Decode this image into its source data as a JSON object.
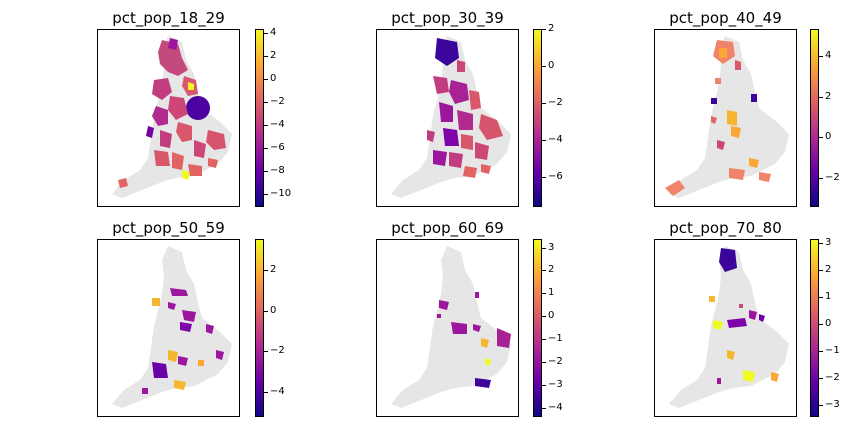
{
  "colormap": [
    "#0d0887",
    "#6a00a8",
    "#b12a90",
    "#e16462",
    "#fca636",
    "#f0f921"
  ],
  "base_color": "#e6e6e6",
  "panels": [
    {
      "title": "pct_pop_18_29",
      "ticks": [
        "4",
        "2",
        "0",
        "−2",
        "−4",
        "−6",
        "−8",
        "−10"
      ],
      "tick_values": [
        4,
        2,
        0,
        -2,
        -4,
        -6,
        -8,
        -10
      ],
      "vmin": -11,
      "vmax": 4.4
    },
    {
      "title": "pct_pop_30_39",
      "ticks": [
        "2",
        "0",
        "−2",
        "−4",
        "−6"
      ],
      "tick_values": [
        2,
        0,
        -2,
        -4,
        -6
      ],
      "vmin": -7.5,
      "vmax": 2
    },
    {
      "title": "pct_pop_40_49",
      "ticks": [
        "4",
        "2",
        "0",
        "−2"
      ],
      "tick_values": [
        4,
        2,
        0,
        -2
      ],
      "vmin": -3.3,
      "vmax": 5.5
    },
    {
      "title": "pct_pop_50_59",
      "ticks": [
        "2",
        "0",
        "−2",
        "−4"
      ],
      "tick_values": [
        2,
        0,
        -2,
        -4
      ],
      "vmin": -5.3,
      "vmax": 3.6
    },
    {
      "title": "pct_pop_60_69",
      "ticks": [
        "3",
        "2",
        "1",
        "0",
        "−1",
        "−2",
        "−3",
        "−4"
      ],
      "tick_values": [
        3,
        2,
        1,
        0,
        -1,
        -2,
        -3,
        -4
      ],
      "vmin": -4.5,
      "vmax": 3.3
    },
    {
      "title": "pct_pop_70_80",
      "ticks": [
        "3",
        "2",
        "1",
        "0",
        "−1",
        "−2",
        "−3"
      ],
      "tick_values": [
        3,
        2,
        1,
        0,
        -1,
        -2,
        -3
      ],
      "vmin": -3.4,
      "vmax": 3.2
    }
  ]
}
